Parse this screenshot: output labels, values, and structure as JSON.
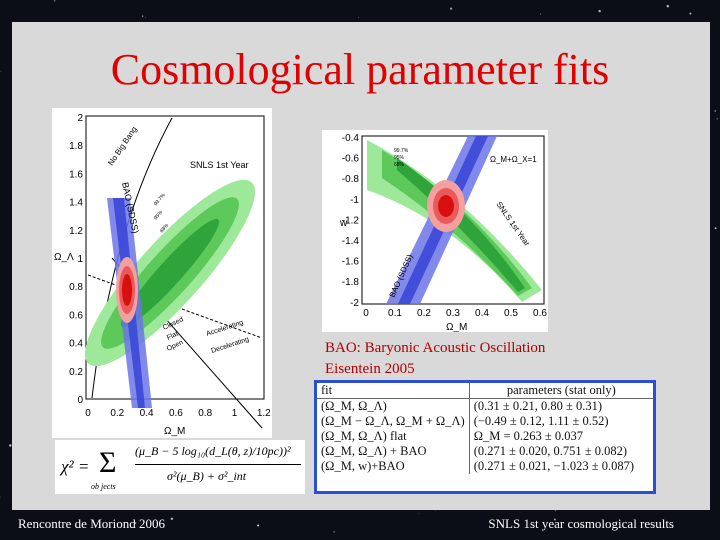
{
  "slide": {
    "title": "Cosmological parameter fits",
    "footer_left": "Rencontre de Moriond 2006",
    "footer_right": "SNLS 1st year cosmological  results",
    "bao_note_line1": "BAO: Baryonic Acoustic Oscillation",
    "bao_note_line2": "Eisentein 2005"
  },
  "colors": {
    "title": "#e00000",
    "panel": "#d9d9d9",
    "sn_contour": "#35b040",
    "bao_band": "#3b48d8",
    "combined": "#e01818",
    "table_border": "#2a4fd0"
  },
  "left_figure": {
    "y_label": "Ω_Λ",
    "x_label": "Ω_M",
    "y_ticks": [
      "2",
      "1.8",
      "1.6",
      "1.4",
      "1.2",
      "1",
      "0.8",
      "0.6",
      "0.4",
      "0.2",
      "0"
    ],
    "x_ticks": [
      "0",
      "0.2",
      "0.4",
      "0.6",
      "0.8",
      "1",
      "1.2"
    ],
    "labels": {
      "no_big_bang": "No Big Bang",
      "snls": "SNLS 1st Year",
      "bao": "BAO (SDSS)",
      "accelerating": "Accelerating",
      "decelerating": "Decelerating",
      "closed": "Closed",
      "flat": "Flat",
      "open": "Open",
      "c99": "99.7%",
      "c95": "95%",
      "c68": "68%"
    }
  },
  "right_figure": {
    "y_label": "w",
    "x_label": "Ω_M",
    "y_ticks": [
      "-0.4",
      "-0.6",
      "-0.8",
      "-1",
      "-1.2",
      "-1.4",
      "-1.6",
      "-1.8",
      "-2"
    ],
    "x_ticks": [
      "0",
      "0.1",
      "0.2",
      "0.3",
      "0.4",
      "0.5",
      "0.6"
    ],
    "labels": {
      "snls": "SNLS 1st Year",
      "bao": "BAO (SDSS)",
      "prior": "Ω_M+Ω_X=1",
      "c99": "99.7%",
      "c95": "95%",
      "c68": "68%"
    }
  },
  "fit_table": {
    "headers": [
      "fit",
      "parameters (stat only)"
    ],
    "rows": [
      [
        "(Ω_M, Ω_Λ)",
        "(0.31 ± 0.21, 0.80 ± 0.31)"
      ],
      [
        "(Ω_M − Ω_Λ, Ω_M + Ω_Λ)",
        "(−0.49 ± 0.12, 1.11 ± 0.52)"
      ],
      [
        "(Ω_M, Ω_Λ) flat",
        "Ω_M = 0.263 ± 0.037"
      ],
      [
        "(Ω_M, Ω_Λ) + BAO",
        "(0.271 ± 0.020, 0.751 ± 0.082)"
      ],
      [
        "(Ω_M, w)+BAO",
        "(0.271 ± 0.021, −1.023 ± 0.087)"
      ]
    ]
  },
  "formula": {
    "lhs": "χ² =",
    "sum": "Σ",
    "sum_sub": "ob jects",
    "numerator": "(μ_B − 5 log₁₀(d_L(θ, z)/10pc))²",
    "denominator": "σ²(μ_B) + σ²_int"
  }
}
